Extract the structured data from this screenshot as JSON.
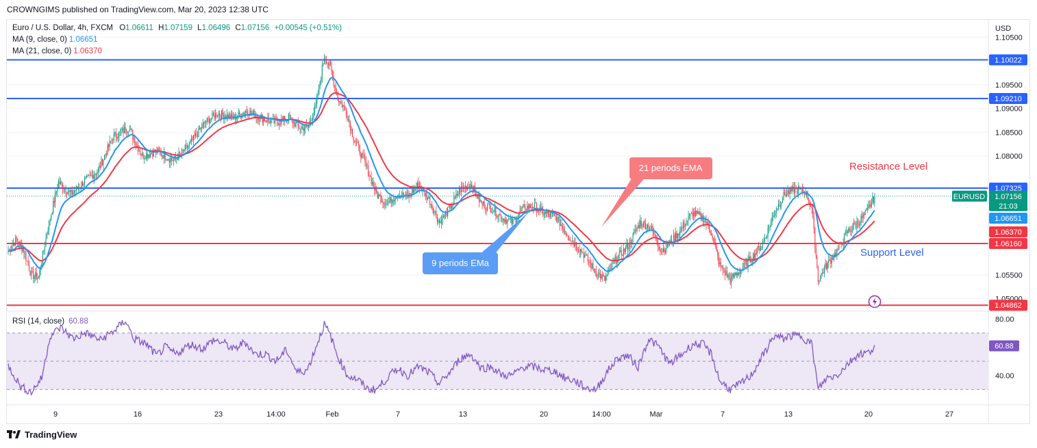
{
  "header": {
    "publisher_line": "CROWNGIMS published on TradingView.com, Mar 20, 2023 12:38 UTC"
  },
  "legend": {
    "symbol": "Euro / U.S. Dollar, 4h, FXCM",
    "open_label": "O",
    "open": "1.06611",
    "high_label": "H",
    "high": "1.07159",
    "low_label": "L",
    "low": "1.06496",
    "close_label": "C",
    "close": "1.07156",
    "change": "+0.00545 (+0.51%)",
    "ma9_label": "MA (9, close, 0)",
    "ma9_value": "1.06651",
    "ma21_label": "MA (21, close, 0)",
    "ma21_value": "1.06370",
    "rsi_label": "RSI (14, close)",
    "rsi_value": "60.88"
  },
  "annotations": {
    "ema21_callout": "21 periods EMA",
    "ema9_callout": "9 periods EMa",
    "resistance": "Resistance Level",
    "support": "Support Level"
  },
  "footer": {
    "brand": "TradingView"
  },
  "colors": {
    "up": "#089981",
    "down": "#f23645",
    "ema9": "#2196f3",
    "ema21": "#f23645",
    "hline_blue": "#2962ff",
    "hline_red": "#f23645",
    "rsi_line": "#7e57c2",
    "rsi_band": "#ede7f6",
    "ema21_callout_bg": "#f77c80",
    "ema9_callout_bg": "#5b9cf6"
  },
  "chart_data": {
    "type": "candlestick",
    "symbol": "EURUSD",
    "currency": "USD",
    "timeframe": "4h",
    "x_ticks": [
      "9",
      "16",
      "23",
      "14:00",
      "Feb",
      "7",
      "13",
      "20",
      "14:00",
      "Mar",
      "7",
      "13",
      "20",
      "27"
    ],
    "y_ticks": [
      "1.10500",
      "1.09500",
      "1.09000",
      "1.08500",
      "1.08000",
      "1.05500",
      "1.05000"
    ],
    "y_range": [
      1.0475,
      1.1085
    ],
    "horizontal_levels": [
      {
        "value": 1.10022,
        "label": "1.10022",
        "color": "blue"
      },
      {
        "value": 1.0921,
        "label": "1.09210",
        "color": "blue"
      },
      {
        "value": 1.07325,
        "label": "1.07325",
        "color": "blue"
      },
      {
        "value": 1.0616,
        "label": "1.06160",
        "color": "red"
      },
      {
        "value": 1.04862,
        "label": "1.04862",
        "color": "red"
      }
    ],
    "price_tags": [
      {
        "label": "EURUSD",
        "value": "1.07156",
        "countdown": "21:03"
      },
      {
        "label": "MA9",
        "value": "1.06651"
      },
      {
        "label": "MA21",
        "value": "1.06370"
      }
    ],
    "close_anchors": [
      [
        0,
        1.06
      ],
      [
        8,
        1.0625
      ],
      [
        15,
        1.06
      ],
      [
        22,
        1.055
      ],
      [
        29,
        1.0545
      ],
      [
        38,
        1.065
      ],
      [
        48,
        1.0745
      ],
      [
        60,
        1.072
      ],
      [
        72,
        1.0745
      ],
      [
        86,
        1.077
      ],
      [
        100,
        1.084
      ],
      [
        115,
        1.086
      ],
      [
        128,
        1.08
      ],
      [
        142,
        1.081
      ],
      [
        158,
        1.079
      ],
      [
        172,
        1.082
      ],
      [
        188,
        1.087
      ],
      [
        200,
        1.089
      ],
      [
        215,
        1.088
      ],
      [
        228,
        1.0895
      ],
      [
        242,
        1.088
      ],
      [
        255,
        1.087
      ],
      [
        268,
        1.088
      ],
      [
        278,
        1.086
      ],
      [
        286,
        1.086
      ],
      [
        294,
        1.0905
      ],
      [
        302,
        1.101
      ],
      [
        308,
        1.0985
      ],
      [
        315,
        1.092
      ],
      [
        322,
        1.09
      ],
      [
        330,
        1.084
      ],
      [
        340,
        1.079
      ],
      [
        352,
        1.072
      ],
      [
        362,
        1.07
      ],
      [
        372,
        1.072
      ],
      [
        382,
        1.0715
      ],
      [
        392,
        1.074
      ],
      [
        402,
        1.071
      ],
      [
        412,
        1.066
      ],
      [
        422,
        1.069
      ],
      [
        432,
        1.073
      ],
      [
        442,
        1.074
      ],
      [
        452,
        1.07
      ],
      [
        462,
        1.069
      ],
      [
        472,
        1.067
      ],
      [
        482,
        1.066
      ],
      [
        492,
        1.069
      ],
      [
        502,
        1.0695
      ],
      [
        512,
        1.068
      ],
      [
        524,
        1.067
      ],
      [
        536,
        1.063
      ],
      [
        548,
        1.06
      ],
      [
        560,
        1.056
      ],
      [
        570,
        1.054
      ],
      [
        580,
        1.058
      ],
      [
        592,
        1.061
      ],
      [
        604,
        1.066
      ],
      [
        614,
        1.065
      ],
      [
        624,
        1.06
      ],
      [
        634,
        1.062
      ],
      [
        644,
        1.065
      ],
      [
        654,
        1.068
      ],
      [
        664,
        1.067
      ],
      [
        672,
        1.064
      ],
      [
        680,
        1.057
      ],
      [
        690,
        1.054
      ],
      [
        700,
        1.056
      ],
      [
        712,
        1.059
      ],
      [
        722,
        1.062
      ],
      [
        732,
        1.068
      ],
      [
        742,
        1.072
      ],
      [
        752,
        1.073
      ],
      [
        762,
        1.0725
      ],
      [
        768,
        1.069
      ],
      [
        774,
        1.054
      ],
      [
        782,
        1.057
      ],
      [
        792,
        1.06
      ],
      [
        802,
        1.064
      ],
      [
        812,
        1.066
      ],
      [
        820,
        1.068
      ],
      [
        828,
        1.0715
      ]
    ],
    "rsi": {
      "label": "RSI (14, close)",
      "value": 60.88,
      "y_ticks": [
        "80.00",
        "40.00"
      ],
      "levels": [
        70,
        50,
        30
      ],
      "y_range": [
        20,
        84
      ],
      "anchors": [
        [
          0,
          47
        ],
        [
          12,
          32
        ],
        [
          22,
          28
        ],
        [
          32,
          38
        ],
        [
          40,
          68
        ],
        [
          50,
          74
        ],
        [
          62,
          66
        ],
        [
          74,
          70
        ],
        [
          88,
          65
        ],
        [
          102,
          72
        ],
        [
          112,
          79
        ],
        [
          120,
          66
        ],
        [
          132,
          62
        ],
        [
          142,
          54
        ],
        [
          150,
          60
        ],
        [
          160,
          55
        ],
        [
          174,
          62
        ],
        [
          186,
          59
        ],
        [
          196,
          65
        ],
        [
          206,
          63
        ],
        [
          216,
          58
        ],
        [
          226,
          64
        ],
        [
          236,
          55
        ],
        [
          246,
          55
        ],
        [
          256,
          50
        ],
        [
          266,
          58
        ],
        [
          276,
          42
        ],
        [
          286,
          44
        ],
        [
          294,
          60
        ],
        [
          302,
          76
        ],
        [
          308,
          68
        ],
        [
          314,
          55
        ],
        [
          324,
          40
        ],
        [
          334,
          37
        ],
        [
          344,
          30
        ],
        [
          352,
          30
        ],
        [
          362,
          38
        ],
        [
          372,
          45
        ],
        [
          382,
          40
        ],
        [
          392,
          46
        ],
        [
          402,
          42
        ],
        [
          412,
          34
        ],
        [
          422,
          42
        ],
        [
          432,
          52
        ],
        [
          442,
          55
        ],
        [
          452,
          45
        ],
        [
          462,
          46
        ],
        [
          472,
          40
        ],
        [
          482,
          40
        ],
        [
          492,
          46
        ],
        [
          502,
          46
        ],
        [
          512,
          44
        ],
        [
          522,
          43
        ],
        [
          532,
          38
        ],
        [
          542,
          36
        ],
        [
          552,
          31
        ],
        [
          562,
          30
        ],
        [
          572,
          42
        ],
        [
          582,
          52
        ],
        [
          592,
          54
        ],
        [
          602,
          46
        ],
        [
          612,
          66
        ],
        [
          622,
          60
        ],
        [
          632,
          48
        ],
        [
          644,
          55
        ],
        [
          654,
          62
        ],
        [
          664,
          62
        ],
        [
          672,
          55
        ],
        [
          680,
          36
        ],
        [
          690,
          30
        ],
        [
          700,
          34
        ],
        [
          710,
          40
        ],
        [
          722,
          55
        ],
        [
          732,
          68
        ],
        [
          740,
          66
        ],
        [
          748,
          68
        ],
        [
          758,
          68
        ],
        [
          768,
          62
        ],
        [
          774,
          30
        ],
        [
          782,
          38
        ],
        [
          792,
          40
        ],
        [
          802,
          48
        ],
        [
          812,
          55
        ],
        [
          822,
          56
        ],
        [
          828,
          61
        ]
      ]
    }
  }
}
